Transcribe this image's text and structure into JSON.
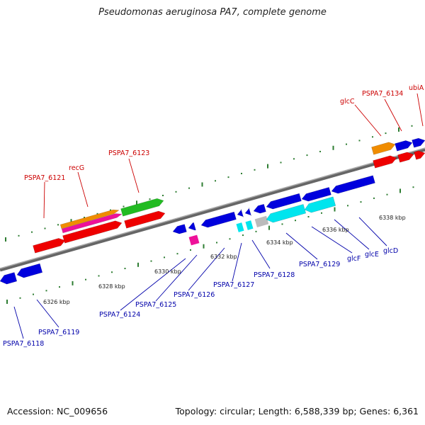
{
  "title": "Pseudomonas aeruginosa PA7, complete genome",
  "footer": {
    "accession": "Accession: NC_009656",
    "summary": "Topology: circular; Length: 6,588,339 bp; Genes: 6,361"
  },
  "kbp_labels": [
    "6326 kbp",
    "6328 kbp",
    "6330 kbp",
    "6332 kbp",
    "6334 kbp",
    "6336 kbp",
    "6338 kbp"
  ],
  "forward_gene_labels": [
    "PSPA7_6121",
    "recG",
    "PSPA7_6123",
    "glcC",
    "PSPA7_6134",
    "ubiA"
  ],
  "reverse_gene_labels": [
    "PSPA7_6118",
    "PSPA7_6119",
    "PSPA7_6124",
    "PSPA7_6125",
    "PSPA7_6126",
    "PSPA7_6127",
    "PSPA7_6128",
    "PSPA7_6129",
    "glcF",
    "glcE",
    "glcD"
  ],
  "colors": {
    "forward_label": "#cc0000",
    "reverse_label": "#0000aa",
    "red": "#ee0000",
    "blue": "#0000dd",
    "cyan": "#00e5ee",
    "orange": "#f08c00",
    "magenta": "#ee1199",
    "green": "#22bb22",
    "gray": "#bbbbbb",
    "tick_green": "#2e7d32",
    "backbone": "#888888"
  }
}
